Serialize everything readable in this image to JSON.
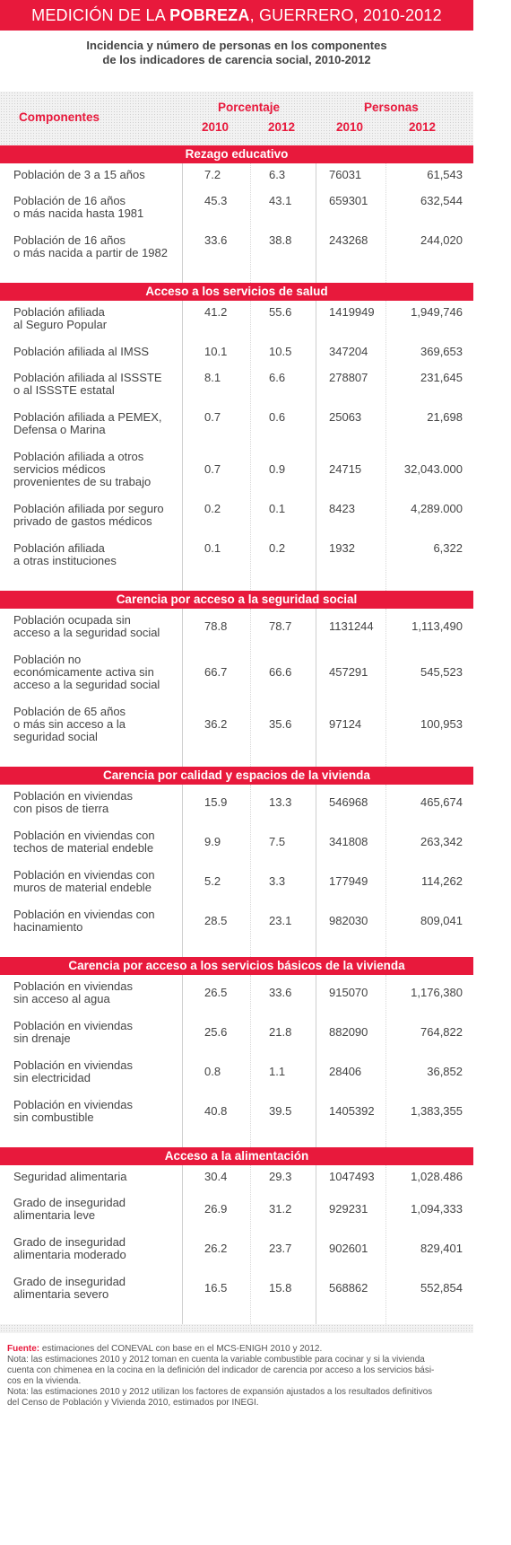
{
  "header": {
    "title_pre": "MEDICIÓN DE LA ",
    "title_bold": "POBREZA",
    "title_post": ", GUERRERO, 2010-2012",
    "subtitle_line1": "Incidencia y número de personas en los componentes",
    "subtitle_line2": "de los indicadores de carencia social, 2010-2012"
  },
  "table_header": {
    "componentes": "Componentes",
    "porcentaje": "Porcentaje",
    "personas": "Personas",
    "y2010a": "2010",
    "y2012a": "2012",
    "y2010b": "2010",
    "y2012b": "2012"
  },
  "sections": [
    {
      "title": "Rezago educativo",
      "rows": [
        {
          "label": [
            "Población de 3 a 15 años"
          ],
          "p2010": "7.2",
          "p2012": "6.3",
          "n2010": "76031",
          "n2012": "61,543"
        },
        {
          "label": [
            "Población de 16 años",
            "o más nacida hasta 1981"
          ],
          "p2010": "45.3",
          "p2012": "43.1",
          "n2010": "659301",
          "n2012": "632,544"
        },
        {
          "label": [
            "Población de 16 años",
            "o más nacida a partir de 1982"
          ],
          "p2010": "33.6",
          "p2012": "38.8",
          "n2010": "243268",
          "n2012": "244,020"
        }
      ]
    },
    {
      "title": "Acceso a los servicios de salud",
      "rows": [
        {
          "label": [
            "Población afiliada",
            "al Seguro Popular"
          ],
          "p2010": "41.2",
          "p2012": "55.6",
          "n2010": "1419949",
          "n2012": "1,949,746"
        },
        {
          "label": [
            "Población afiliada al IMSS"
          ],
          "p2010": "10.1",
          "p2012": "10.5",
          "n2010": "347204",
          "n2012": "369,653"
        },
        {
          "label": [
            "Población afiliada al ISSSTE",
            "o al ISSSTE estatal"
          ],
          "p2010": "8.1",
          "p2012": "6.6",
          "n2010": "278807",
          "n2012": "231,645"
        },
        {
          "label": [
            "Población afiliada a PEMEX,",
            "Defensa o Marina"
          ],
          "p2010": "0.7",
          "p2012": "0.6",
          "n2010": "25063",
          "n2012": "21,698"
        },
        {
          "label": [
            "Población afiliada a otros",
            "servicios médicos",
            "provenientes de su trabajo"
          ],
          "p2010": "0.7",
          "p2012": "0.9",
          "n2010": "24715",
          "n2012": "32,043.000"
        },
        {
          "label": [
            "Población afiliada por seguro",
            "privado de gastos médicos"
          ],
          "p2010": "0.2",
          "p2012": "0.1",
          "n2010": "8423",
          "n2012": "4,289.000"
        },
        {
          "label": [
            "Población afiliada",
            "a otras instituciones"
          ],
          "p2010": "0.1",
          "p2012": "0.2",
          "n2010": "1932",
          "n2012": "6,322"
        }
      ]
    },
    {
      "title": "Carencia por acceso a la seguridad social",
      "rows": [
        {
          "label": [
            "Población ocupada sin",
            "acceso a la seguridad social"
          ],
          "p2010": "78.8",
          "p2012": "78.7",
          "n2010": "1131244",
          "n2012": "1,113,490"
        },
        {
          "label": [
            "Población no",
            "económicamente activa sin",
            "acceso a la seguridad social"
          ],
          "p2010": "66.7",
          "p2012": "66.6",
          "n2010": "457291",
          "n2012": "545,523"
        },
        {
          "label": [
            "Población de 65 años",
            "o más sin acceso a la",
            "seguridad social"
          ],
          "p2010": "36.2",
          "p2012": "35.6",
          "n2010": "97124",
          "n2012": "100,953"
        }
      ]
    },
    {
      "title": "Carencia por calidad y espacios de la vivienda",
      "rows": [
        {
          "label": [
            "Población en viviendas",
            "con pisos de tierra"
          ],
          "p2010": "15.9",
          "p2012": "13.3",
          "n2010": "546968",
          "n2012": "465,674"
        },
        {
          "label": [
            "Población en viviendas con",
            "techos de material endeble"
          ],
          "p2010": "9.9",
          "p2012": "7.5",
          "n2010": "341808",
          "n2012": "263,342"
        },
        {
          "label": [
            "Población en viviendas con",
            "muros de material endeble"
          ],
          "p2010": "5.2",
          "p2012": "3.3",
          "n2010": "177949",
          "n2012": "114,262"
        },
        {
          "label": [
            "Población en viviendas con",
            "hacinamiento"
          ],
          "p2010": "28.5",
          "p2012": "23.1",
          "n2010": "982030",
          "n2012": "809,041"
        }
      ]
    },
    {
      "title": "Carencia por acceso a los servicios básicos de la vivienda",
      "rows": [
        {
          "label": [
            "Población en viviendas",
            "sin acceso al agua"
          ],
          "p2010": "26.5",
          "p2012": "33.6",
          "n2010": "915070",
          "n2012": "1,176,380"
        },
        {
          "label": [
            "Población en viviendas",
            "sin drenaje"
          ],
          "p2010": "25.6",
          "p2012": "21.8",
          "n2010": "882090",
          "n2012": "764,822"
        },
        {
          "label": [
            "Población en viviendas",
            "sin electricidad"
          ],
          "p2010": "0.8",
          "p2012": "1.1",
          "n2010": "28406",
          "n2012": "36,852"
        },
        {
          "label": [
            "Población en viviendas",
            "sin combustible"
          ],
          "p2010": "40.8",
          "p2012": "39.5",
          "n2010": "1405392",
          "n2012": "1,383,355"
        }
      ]
    },
    {
      "title": "Acceso a la alimentación",
      "rows": [
        {
          "label": [
            "Seguridad alimentaria"
          ],
          "p2010": "30.4",
          "p2012": "29.3",
          "n2010": "1047493",
          "n2012": "1,028.486"
        },
        {
          "label": [
            "Grado de inseguridad",
            "alimentaria leve"
          ],
          "p2010": "26.9",
          "p2012": "31.2",
          "n2010": "929231",
          "n2012": "1,094,333"
        },
        {
          "label": [
            "Grado de inseguridad",
            "alimentaria moderado"
          ],
          "p2010": "26.2",
          "p2012": "23.7",
          "n2010": "902601",
          "n2012": "829,401"
        },
        {
          "label": [
            "Grado de inseguridad",
            "alimentaria severo"
          ],
          "p2010": "16.5",
          "p2012": "15.8",
          "n2010": "568862",
          "n2012": "552,854"
        }
      ]
    }
  ],
  "notes": {
    "source_label": "Fuente:",
    "source_text": " estimaciones del CONEVAL con base en el MCS-ENIGH 2010 y 2012.",
    "note1": [
      "Nota: las estimaciones 2010 y 2012 toman en cuenta la variable combustible para cocinar y si la vivienda",
      "cuenta con chimenea en la cocina en la definición del indicador de carencia por acceso a los servicios bási-",
      "cos en la vivienda."
    ],
    "note2": [
      "Nota: las estimaciones 2010 y 2012 utilizan los factores de expansión ajustados a los resultados definitivos",
      "del Censo de Población y Vivienda 2010, estimados por INEGI."
    ]
  },
  "colors": {
    "accent": "#e8193c",
    "text": "#444444"
  }
}
